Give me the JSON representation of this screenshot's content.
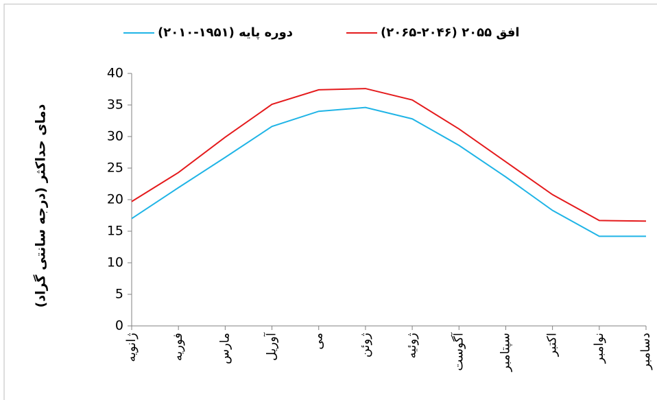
{
  "chart_data": {
    "type": "line",
    "y_label": "دمای حداکثر (درجه سانتی گراد)",
    "categories": [
      "ژانویه",
      "فوریه",
      "مارس",
      "آوریل",
      "می",
      "ژوئن",
      "ژوئیه",
      "آگوست",
      "سپتامبر",
      "اکتبر",
      "نوامبر",
      "دسامبر"
    ],
    "series": [
      {
        "name": "دوره پایه (۱۹۵۱-۲۰۱۰)",
        "color": "#1fb4e6",
        "values": [
          17.0,
          21.9,
          26.7,
          31.6,
          34.0,
          34.6,
          32.8,
          28.6,
          23.6,
          18.3,
          14.2,
          14.2
        ]
      },
      {
        "name": "افق ۲۰۵۵ (۲۰۴۶-۲۰۶۵)",
        "color": "#e41a1c",
        "values": [
          19.7,
          24.3,
          29.9,
          35.1,
          37.4,
          37.6,
          35.8,
          31.2,
          26.0,
          20.8,
          16.7,
          16.6
        ]
      }
    ],
    "ylim": [
      0,
      40
    ],
    "yticks": [
      0,
      5,
      10,
      15,
      20,
      25,
      30,
      35,
      40
    ]
  }
}
